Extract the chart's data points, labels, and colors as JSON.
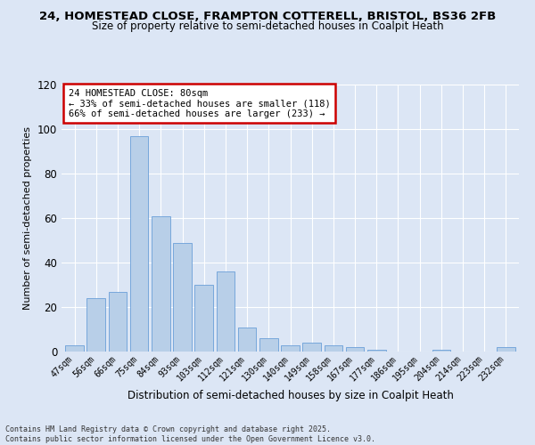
{
  "title_line1": "24, HOMESTEAD CLOSE, FRAMPTON COTTERELL, BRISTOL, BS36 2FB",
  "title_line2": "Size of property relative to semi-detached houses in Coalpit Heath",
  "xlabel": "Distribution of semi-detached houses by size in Coalpit Heath",
  "ylabel": "Number of semi-detached properties",
  "categories": [
    "47sqm",
    "56sqm",
    "66sqm",
    "75sqm",
    "84sqm",
    "93sqm",
    "103sqm",
    "112sqm",
    "121sqm",
    "130sqm",
    "140sqm",
    "149sqm",
    "158sqm",
    "167sqm",
    "177sqm",
    "186sqm",
    "195sqm",
    "204sqm",
    "214sqm",
    "223sqm",
    "232sqm"
  ],
  "values": [
    3,
    24,
    27,
    97,
    61,
    49,
    30,
    36,
    11,
    6,
    3,
    4,
    3,
    2,
    1,
    0,
    0,
    1,
    0,
    0,
    2
  ],
  "bar_color": "#b8cfe8",
  "bar_edge_color": "#6a9fd8",
  "annotation_title": "24 HOMESTEAD CLOSE: 80sqm",
  "annotation_line2": "← 33% of semi-detached houses are smaller (118)",
  "annotation_line3": "66% of semi-detached houses are larger (233) →",
  "annotation_box_color": "#ffffff",
  "annotation_box_edge": "#cc0000",
  "ylim": [
    0,
    120
  ],
  "yticks": [
    0,
    20,
    40,
    60,
    80,
    100,
    120
  ],
  "background_color": "#dce6f5",
  "plot_bg_color": "#dce6f5",
  "footer_line1": "Contains HM Land Registry data © Crown copyright and database right 2025.",
  "footer_line2": "Contains public sector information licensed under the Open Government Licence v3.0."
}
